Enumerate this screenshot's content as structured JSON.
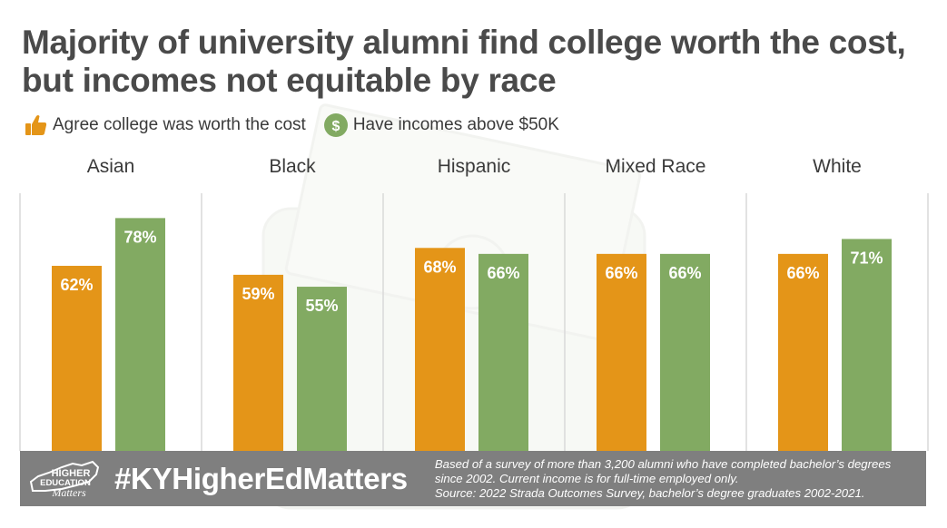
{
  "title_lines": [
    "Majority of university alumni find college worth the cost,",
    "but incomes not equitable by race"
  ],
  "legend": [
    {
      "label": "Agree college was worth the cost",
      "icon": "thumbs-up-icon",
      "color": "#e49518"
    },
    {
      "label": "Have incomes above $50K",
      "icon": "dollar-circle-icon",
      "color": "#82aa62"
    }
  ],
  "chart_data": {
    "type": "bar",
    "categories": [
      "Asian",
      "Black",
      "Hispanic",
      "Mixed Race",
      "White"
    ],
    "series": [
      {
        "name": "Agree college was worth the cost",
        "values": [
          62,
          59,
          68,
          66,
          66
        ],
        "color": "#e49518"
      },
      {
        "name": "Have incomes above $50K",
        "values": [
          78,
          55,
          66,
          66,
          71
        ],
        "color": "#82aa62"
      }
    ],
    "value_suffix": "%",
    "ylim": [
      0,
      100
    ],
    "grid": false
  },
  "footer": {
    "logo_text": [
      "HIGHER",
      "EDUCATION",
      "Matters"
    ],
    "hashtag": "#KYHigherEdMatters",
    "notes": [
      "Based of a survey of more than 3,200 alumni who have completed bachelor’s degrees",
      "since 2002. Current income is for full-time employed only.",
      "Source: 2022 Strada Outcomes Survey, bachelor’s degree graduates 2002-2021."
    ]
  }
}
